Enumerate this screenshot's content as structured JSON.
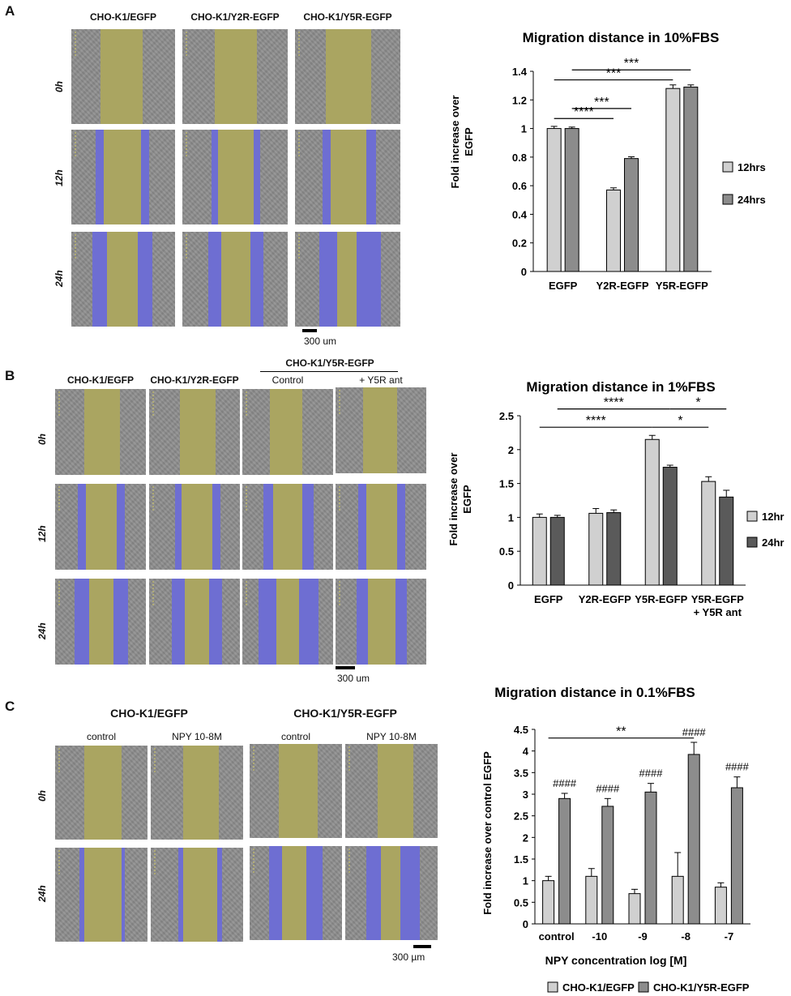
{
  "panels": {
    "A": {
      "letter": "A",
      "columns": [
        "CHO-K1/EGFP",
        "CHO-K1/Y2R-EGFP",
        "CHO-K1/Y5R-EGFP"
      ],
      "rows": [
        "0h",
        "12h",
        "24h"
      ],
      "scale": "300 um"
    },
    "B": {
      "letter": "B",
      "columns": [
        "CHO-K1/EGFP",
        "CHO-K1/Y2R-EGFP",
        "Control",
        "+ Y5R ant"
      ],
      "group_header": "CHO-K1/Y5R-EGFP",
      "rows": [
        "0h",
        "12h",
        "24h"
      ],
      "scale": "300 um"
    },
    "C": {
      "letter": "C",
      "groups": [
        "CHO-K1/EGFP",
        "CHO-K1/Y5R-EGFP"
      ],
      "columns": [
        "control",
        "NPY 10-8M",
        "control",
        "NPY 10-8M"
      ],
      "rows": [
        "0h",
        "24h"
      ],
      "scale": "300 µm"
    }
  },
  "chart_data": [
    {
      "type": "bar",
      "title": "Migration distance in 10%FBS",
      "ylabel": "Fold increase over EGFP",
      "xlabel": "",
      "categories": [
        "EGFP",
        "Y2R-EGFP",
        "Y5R-EGFP"
      ],
      "series": [
        {
          "name": "12hrs",
          "values": [
            1.0,
            0.57,
            1.28
          ],
          "errors": [
            0.015,
            0.015,
            0.025
          ],
          "color": "#d0d0d0"
        },
        {
          "name": "24hrs",
          "values": [
            1.0,
            0.79,
            1.29
          ],
          "errors": [
            0.01,
            0.012,
            0.015
          ],
          "color": "#8c8c8c"
        }
      ],
      "ylim": [
        0,
        1.4
      ],
      "yticks": [
        "0",
        "0.2",
        "0.4",
        "0.6",
        "0.8",
        "1",
        "1.2",
        "1.4"
      ],
      "legend": "right",
      "significance": [
        {
          "from": [
            0,
            0
          ],
          "to": [
            1,
            0
          ],
          "label": "****",
          "y": 1.07
        },
        {
          "from": [
            0,
            1
          ],
          "to": [
            1,
            1
          ],
          "label": "***",
          "y": 1.14
        },
        {
          "from": [
            0,
            0
          ],
          "to": [
            2,
            0
          ],
          "label": "***",
          "y": 1.34
        },
        {
          "from": [
            0,
            1
          ],
          "to": [
            2,
            1
          ],
          "label": "***",
          "y": 1.41
        }
      ]
    },
    {
      "type": "bar",
      "title": "Migration distance in 1%FBS",
      "ylabel": "Fold increase over EGFP",
      "xlabel": "",
      "categories": [
        "EGFP",
        "Y2R-EGFP",
        "Y5R-EGFP",
        "Y5R-EGFP\n+ Y5R ant"
      ],
      "series": [
        {
          "name": "12hrs",
          "values": [
            1.0,
            1.06,
            2.15,
            1.53
          ],
          "errors": [
            0.05,
            0.07,
            0.06,
            0.07
          ],
          "color": "#d0d0d0"
        },
        {
          "name": "24hrs",
          "values": [
            1.0,
            1.07,
            1.74,
            1.3
          ],
          "errors": [
            0.03,
            0.04,
            0.03,
            0.1
          ],
          "color": "#5a5a5a"
        }
      ],
      "ylim": [
        0,
        2.5
      ],
      "yticks": [
        "0",
        "0.5",
        "1",
        "1.5",
        "2",
        "2.5"
      ],
      "legend": "right",
      "significance": [
        {
          "from": [
            0,
            0
          ],
          "to": [
            2,
            0
          ],
          "label": "****",
          "y": 2.33
        },
        {
          "from": [
            0,
            1
          ],
          "to": [
            2,
            1
          ],
          "label": "****",
          "y": 2.6
        },
        {
          "from": [
            2,
            0
          ],
          "to": [
            3,
            0
          ],
          "label": "*",
          "y": 2.33
        },
        {
          "from": [
            2,
            1
          ],
          "to": [
            3,
            1
          ],
          "label": "*",
          "y": 2.6
        }
      ]
    },
    {
      "type": "bar",
      "title": "Migration distance in 0.1%FBS",
      "ylabel": "Fold increase over  control EGFP",
      "xlabel": "NPY concentration log [M]",
      "categories": [
        "control",
        "-10",
        "-9",
        "-8",
        "-7"
      ],
      "series": [
        {
          "name": "CHO-K1/EGFP",
          "values": [
            1.0,
            1.1,
            0.7,
            1.1,
            0.85
          ],
          "errors": [
            0.1,
            0.18,
            0.1,
            0.55,
            0.1
          ],
          "color": "#d0d0d0"
        },
        {
          "name": "CHO-K1/Y5R-EGFP",
          "values": [
            2.9,
            2.72,
            3.05,
            3.92,
            3.15
          ],
          "errors": [
            0.12,
            0.18,
            0.2,
            0.28,
            0.25
          ],
          "color": "#8c8c8c"
        }
      ],
      "ylim": [
        0,
        4.5
      ],
      "yticks": [
        "0",
        "0.5",
        "1",
        "1.5",
        "2",
        "2.5",
        "3",
        "3.5",
        "4",
        "4.5"
      ],
      "legend": "bottom",
      "annotations": [
        "####",
        "####",
        "####",
        "####",
        "####"
      ],
      "significance": [
        {
          "from": [
            0,
            0
          ],
          "to": [
            3,
            1
          ],
          "label": "**",
          "y": 4.3
        }
      ]
    }
  ]
}
